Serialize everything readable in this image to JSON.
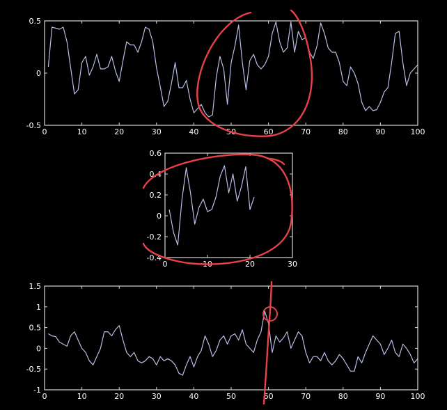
{
  "colors": {
    "background": "#000000",
    "axes": "#d9d9d9",
    "series": "#b9bfe6",
    "annotation": "#e8414a"
  },
  "chart_data": [
    {
      "type": "line",
      "title": "",
      "xlabel": "",
      "ylabel": "",
      "xlim": [
        0,
        100
      ],
      "ylim": [
        -0.5,
        0.5
      ],
      "xticks": [
        "0",
        "10",
        "20",
        "30",
        "40",
        "50",
        "60",
        "70",
        "80",
        "90",
        "100"
      ],
      "yticks": [
        "-0.5",
        "0",
        "0.5"
      ],
      "grid": false,
      "series": [
        {
          "x": [
            1,
            2,
            3,
            4,
            5,
            6,
            7,
            8,
            9,
            10,
            11,
            12,
            13,
            14,
            15,
            16,
            17,
            18,
            19,
            20,
            21,
            22,
            23,
            24,
            25,
            26,
            27,
            28,
            29,
            30,
            31,
            32,
            33,
            34,
            35,
            36,
            37,
            38,
            39,
            40,
            41,
            42,
            43,
            44,
            45,
            46,
            47,
            48,
            49,
            50,
            51,
            52,
            53,
            54,
            55,
            56,
            57,
            58,
            59,
            60,
            61,
            62,
            63,
            64,
            65,
            66,
            67,
            68,
            69,
            70,
            71,
            72,
            73,
            74,
            75,
            76,
            77,
            78,
            79,
            80,
            81,
            82,
            83,
            84,
            85,
            86,
            87,
            88,
            89,
            90,
            91,
            92,
            93,
            94,
            95,
            96,
            97,
            98,
            99,
            100
          ],
          "values": [
            0.06,
            0.44,
            0.43,
            0.42,
            0.44,
            0.3,
            0.05,
            -0.2,
            -0.16,
            0.1,
            0.16,
            -0.02,
            0.06,
            0.18,
            0.04,
            0.04,
            0.06,
            0.16,
            0.02,
            -0.08,
            0.12,
            0.3,
            0.27,
            0.27,
            0.2,
            0.3,
            0.44,
            0.42,
            0.3,
            0.05,
            -0.13,
            -0.32,
            -0.27,
            -0.1,
            0.1,
            -0.14,
            -0.14,
            -0.07,
            -0.25,
            -0.38,
            -0.34,
            -0.3,
            -0.38,
            -0.42,
            -0.4,
            -0.04,
            0.16,
            0.04,
            -0.3,
            0.1,
            0.26,
            0.46,
            0.1,
            -0.16,
            0.12,
            0.18,
            0.08,
            0.04,
            0.08,
            0.16,
            0.38,
            0.49,
            0.3,
            0.2,
            0.24,
            0.49,
            0.2,
            0.4,
            0.32,
            0.34,
            0.2,
            0.14,
            0.26,
            0.48,
            0.38,
            0.24,
            0.2,
            0.2,
            0.1,
            -0.08,
            -0.12,
            0.06,
            0.0,
            -0.1,
            -0.28,
            -0.36,
            -0.32,
            -0.36,
            -0.35,
            -0.28,
            -0.18,
            -0.14,
            0.1,
            0.38,
            0.4,
            0.1,
            -0.12,
            0.0,
            0.04,
            0.08
          ]
        }
      ]
    },
    {
      "type": "line",
      "title": "",
      "xlabel": "",
      "ylabel": "",
      "xlim": [
        0,
        30
      ],
      "ylim": [
        -0.4,
        0.6
      ],
      "xticks": [
        "0",
        "10",
        "20",
        "30"
      ],
      "yticks": [
        "-0.4",
        "-0.2",
        "0",
        "0.2",
        "0.4",
        "0.6"
      ],
      "grid": false,
      "series": [
        {
          "x": [
            1,
            2,
            3,
            4,
            5,
            6,
            7,
            8,
            9,
            10,
            11,
            12,
            13,
            14,
            15,
            16,
            17,
            18,
            19,
            20,
            21
          ],
          "values": [
            0.06,
            -0.16,
            -0.28,
            0.16,
            0.46,
            0.22,
            -0.08,
            0.08,
            0.16,
            0.04,
            0.06,
            0.18,
            0.38,
            0.48,
            0.22,
            0.4,
            0.14,
            0.28,
            0.47,
            0.06,
            0.18
          ]
        }
      ]
    },
    {
      "type": "line",
      "title": "",
      "xlabel": "",
      "ylabel": "",
      "xlim": [
        0,
        100
      ],
      "ylim": [
        -1,
        1.5
      ],
      "xticks": [
        "0",
        "10",
        "20",
        "30",
        "40",
        "50",
        "60",
        "70",
        "80",
        "90",
        "100"
      ],
      "yticks": [
        "-1",
        "-0.5",
        "0",
        "0.5",
        "1",
        "1.5"
      ],
      "grid": false,
      "series": [
        {
          "x": [
            1,
            2,
            3,
            4,
            5,
            6,
            7,
            8,
            9,
            10,
            11,
            12,
            13,
            14,
            15,
            16,
            17,
            18,
            19,
            20,
            21,
            22,
            23,
            24,
            25,
            26,
            27,
            28,
            29,
            30,
            31,
            32,
            33,
            34,
            35,
            36,
            37,
            38,
            39,
            40,
            41,
            42,
            43,
            44,
            45,
            46,
            47,
            48,
            49,
            50,
            51,
            52,
            53,
            54,
            55,
            56,
            57,
            58,
            59,
            60,
            61,
            62,
            63,
            64,
            65,
            66,
            67,
            68,
            69,
            70,
            71,
            72,
            73,
            74,
            75,
            76,
            77,
            78,
            79,
            80,
            81,
            82,
            83,
            84,
            85,
            86,
            87,
            88,
            89,
            90,
            91,
            92,
            93,
            94,
            95,
            96,
            97,
            98,
            99,
            100
          ],
          "values": [
            0.35,
            0.3,
            0.28,
            0.15,
            0.1,
            0.05,
            0.3,
            0.4,
            0.2,
            0.0,
            -0.1,
            -0.3,
            -0.4,
            -0.2,
            0.0,
            0.4,
            0.4,
            0.3,
            0.45,
            0.55,
            0.2,
            -0.1,
            -0.2,
            -0.1,
            -0.3,
            -0.35,
            -0.3,
            -0.2,
            -0.25,
            -0.4,
            -0.2,
            -0.3,
            -0.25,
            -0.3,
            -0.4,
            -0.6,
            -0.65,
            -0.4,
            -0.2,
            -0.45,
            -0.2,
            -0.05,
            0.3,
            0.1,
            -0.2,
            -0.05,
            0.2,
            0.3,
            0.1,
            0.3,
            0.35,
            0.2,
            0.45,
            0.1,
            0.0,
            -0.1,
            0.2,
            0.4,
            0.9,
            0.6,
            -0.1,
            0.3,
            0.15,
            0.25,
            0.4,
            0.0,
            0.2,
            0.4,
            0.3,
            -0.1,
            -0.35,
            -0.2,
            -0.2,
            -0.3,
            -0.1,
            -0.3,
            -0.4,
            -0.3,
            -0.15,
            -0.25,
            -0.4,
            -0.55,
            -0.55,
            -0.2,
            -0.35,
            -0.1,
            0.1,
            0.3,
            0.2,
            0.1,
            -0.15,
            0.0,
            0.2,
            -0.1,
            -0.2,
            0.1,
            0.0,
            -0.15,
            -0.35,
            -0.25
          ]
        }
      ]
    }
  ]
}
